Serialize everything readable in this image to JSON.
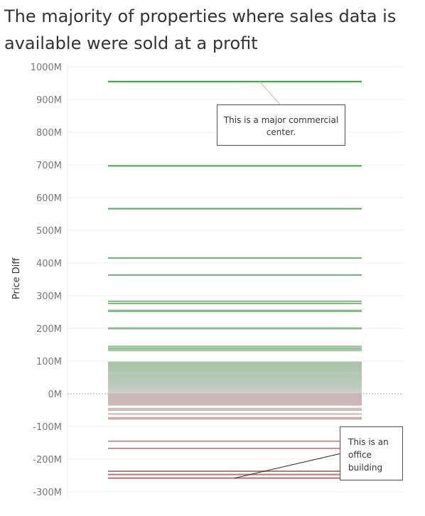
{
  "chart_data": {
    "type": "line",
    "title": "The majority of properties where sales data is available were sold at a profit",
    "ylabel": "Price Diff",
    "ylim": [
      -300,
      1000
    ],
    "ytick_values": [
      1000,
      900,
      800,
      700,
      600,
      500,
      400,
      300,
      200,
      100,
      0,
      -100,
      -200,
      -300
    ],
    "ytick_labels": [
      "1000M",
      "900M",
      "800M",
      "700M",
      "600M",
      "500M",
      "400M",
      "300M",
      "200M",
      "100M",
      "0M",
      "-100M",
      "-200M",
      "-300M"
    ],
    "grid": true,
    "values": [
      955,
      697,
      566,
      415,
      363,
      283,
      276,
      255,
      252,
      201,
      199,
      145,
      140,
      137,
      132,
      92,
      89,
      86,
      83,
      80,
      77,
      74,
      71,
      60,
      55,
      50,
      45,
      40,
      35,
      30,
      25,
      20,
      15,
      10,
      5,
      0,
      -5,
      -10,
      -15,
      -20,
      -25,
      -30,
      -45,
      -50,
      -62,
      -73,
      -77,
      -145,
      -167,
      -237,
      -247,
      -258
    ],
    "colors": {
      "positive": "#2ca02c",
      "negative": "#b56b6b",
      "neutral": "#cfcfcf",
      "grid": "#ececec",
      "zero_line": "#aaaaaa"
    },
    "annotations": [
      {
        "text": "This is a major commercial center.",
        "value": 955
      },
      {
        "text": "This is an office building",
        "value": -258
      }
    ]
  }
}
